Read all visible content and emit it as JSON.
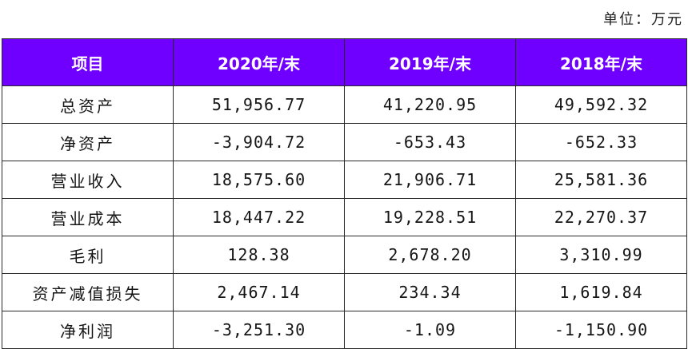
{
  "unit_note": "单位：万元",
  "table": {
    "headers": [
      "项目",
      "2020年/末",
      "2019年/末",
      "2018年/末"
    ],
    "rows": [
      [
        "总资产",
        "51,956.77",
        "41,220.95",
        "49,592.32"
      ],
      [
        "净资产",
        "-3,904.72",
        "-653.43",
        "-652.33"
      ],
      [
        "营业收入",
        "18,575.60",
        "21,906.71",
        "25,581.36"
      ],
      [
        "营业成本",
        "18,447.22",
        "19,228.51",
        "22,270.37"
      ],
      [
        "毛利",
        "128.38",
        "2,678.20",
        "3,310.99"
      ],
      [
        "资产减值损失",
        "2,467.14",
        "234.34",
        "1,619.84"
      ],
      [
        "净利润",
        "-3,251.30",
        "-1.09",
        "-1,150.90"
      ]
    ]
  },
  "colors": {
    "header_background": "#6f00ff",
    "header_text": "#ffffff",
    "border": "#2a2a2a"
  }
}
